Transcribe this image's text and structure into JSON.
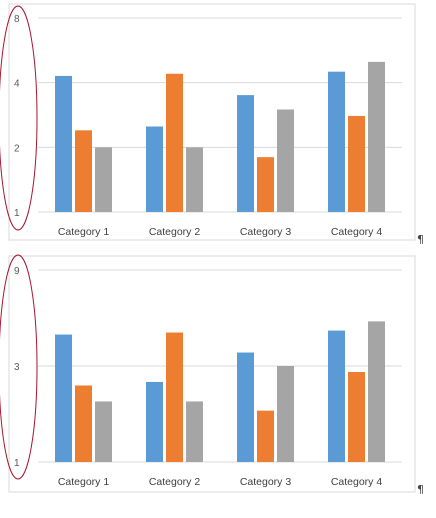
{
  "document": {
    "paragraph_mark": "¶"
  },
  "theme": {
    "series_colors": [
      "#5b9bd5",
      "#ed7d31",
      "#a5a5a5"
    ],
    "gridline_color": "#d9d9d9",
    "frame_color": "#d9d9d9",
    "annotation_ellipse_color": "#a5162e"
  },
  "chart_data": [
    {
      "type": "bar",
      "y_scale": "log",
      "ylim": [
        1,
        8
      ],
      "yticks": [
        1,
        2,
        4,
        8
      ],
      "ytick_labels": [
        "1",
        "2",
        "4",
        "8"
      ],
      "grid": true,
      "legend": "none",
      "categories": [
        "Category 1",
        "Category 2",
        "Category 3",
        "Category 4"
      ],
      "series": [
        {
          "values": [
            4.3,
            2.5,
            3.5,
            4.5
          ]
        },
        {
          "values": [
            2.4,
            4.4,
            1.8,
            2.8
          ]
        },
        {
          "values": [
            2,
            2,
            3,
            5
          ]
        }
      ]
    },
    {
      "type": "bar",
      "y_scale": "log",
      "ylim": [
        1,
        9
      ],
      "yticks": [
        1,
        3,
        9
      ],
      "ytick_labels": [
        "1",
        "3",
        "9"
      ],
      "grid": true,
      "legend": "none",
      "categories": [
        "Category 1",
        "Category 2",
        "Category 3",
        "Category 4"
      ],
      "series": [
        {
          "values": [
            4.3,
            2.5,
            3.5,
            4.5
          ]
        },
        {
          "values": [
            2.4,
            4.4,
            1.8,
            2.8
          ]
        },
        {
          "values": [
            2,
            2,
            3,
            5
          ]
        }
      ]
    }
  ]
}
